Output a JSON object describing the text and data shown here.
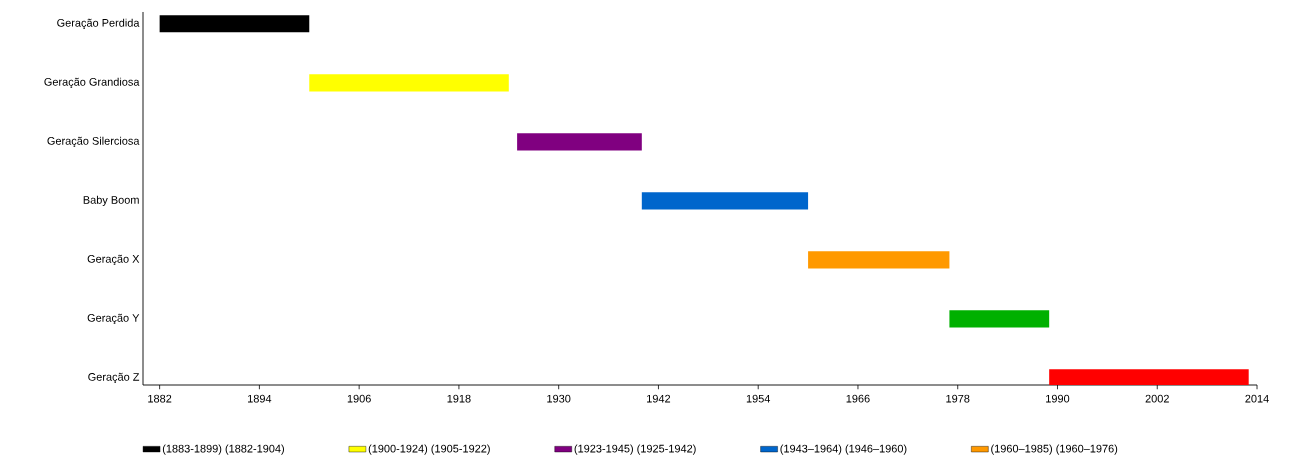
{
  "chart_data": {
    "type": "bar",
    "orientation": "horizontal",
    "legend": "bottom",
    "categories": [
      "Geração Perdida",
      "Geração Grandiosa",
      "Geração Silerciosa",
      "Baby Boom",
      "Geração X",
      "Geração Y",
      "Geração Z"
    ],
    "series": [
      {
        "name": "(1883-1899) (1882-1904)",
        "color": "#000000",
        "base": [
          1882,
          null,
          null,
          null,
          null,
          null,
          null
        ],
        "values": [
          18,
          null,
          null,
          null,
          null,
          null,
          null
        ]
      },
      {
        "name": "(1900-1924) (1905-1922)",
        "color": "#ffff00",
        "base": [
          null,
          1900,
          null,
          null,
          null,
          null,
          null
        ],
        "values": [
          null,
          24,
          null,
          null,
          null,
          null,
          null
        ]
      },
      {
        "name": "(1923-1945) (1925-1942)",
        "color": "#800080",
        "base": [
          null,
          null,
          1925,
          null,
          null,
          null,
          null
        ],
        "values": [
          null,
          null,
          15,
          null,
          null,
          null,
          null
        ]
      },
      {
        "name": "(1943–1964) (1946–1960)",
        "color": "#0066cc",
        "base": [
          null,
          null,
          null,
          1940,
          null,
          null,
          null
        ],
        "values": [
          null,
          null,
          null,
          20,
          null,
          null,
          null
        ]
      },
      {
        "name": "(1960–1985) (1960–1976)",
        "color": "#ff9900",
        "base": [
          null,
          null,
          null,
          null,
          1960,
          null,
          null
        ],
        "values": [
          null,
          null,
          null,
          null,
          17,
          null,
          null
        ]
      },
      {
        "color": "#00b000",
        "base": [
          null,
          null,
          null,
          null,
          null,
          1977,
          null
        ],
        "values": [
          null,
          null,
          null,
          null,
          null,
          12,
          null
        ]
      },
      {
        "color": "#ff0000",
        "base": [
          null,
          null,
          null,
          null,
          null,
          null,
          1989
        ],
        "values": [
          null,
          null,
          null,
          null,
          null,
          null,
          24
        ]
      }
    ],
    "xlim": [
      1880,
      2014
    ],
    "xticks": [
      1882,
      1894,
      1906,
      1918,
      1930,
      1942,
      1954,
      1966,
      1978,
      1990,
      2002,
      2014
    ]
  }
}
